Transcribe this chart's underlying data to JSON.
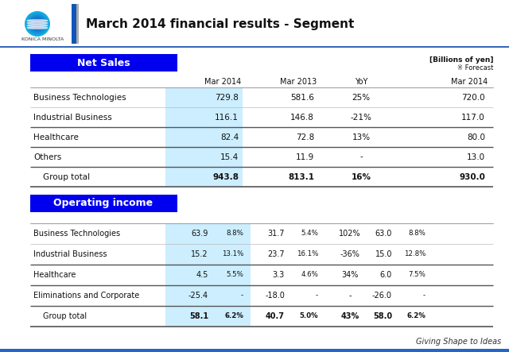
{
  "title": "March 2014 financial results - Segment",
  "bg_color": "#ffffff",
  "header_blue": "#0000EE",
  "light_blue_col": "#cceeff",
  "tagline": "Giving Shape to Ideas",
  "billions_label": "[Billions of yen]",
  "forecast_label": "※ Forecast",
  "net_sales_label": "Net Sales",
  "operating_income_label": "Operating income",
  "ns_rows": [
    {
      "label": "Business Technologies",
      "mar2014": "729.8",
      "mar2013": "581.6",
      "yoy": "25%",
      "forecast": "720.0",
      "is_total": false,
      "is_sep": false
    },
    {
      "label": "Industrial Business",
      "mar2014": "116.1",
      "mar2013": "146.8",
      "yoy": "-21%",
      "forecast": "117.0",
      "is_total": false,
      "is_sep": false
    },
    {
      "label": "Healthcare",
      "mar2014": "82.4",
      "mar2013": "72.8",
      "yoy": "13%",
      "forecast": "80.0",
      "is_total": false,
      "is_sep": true
    },
    {
      "label": "Others",
      "mar2014": "15.4",
      "mar2013": "11.9",
      "yoy": "-",
      "forecast": "13.0",
      "is_total": false,
      "is_sep": true
    },
    {
      "label": "Group total",
      "mar2014": "943.8",
      "mar2013": "813.1",
      "yoy": "16%",
      "forecast": "930.0",
      "is_total": true,
      "is_sep": true
    }
  ],
  "oi_rows": [
    {
      "label": "Business Technologies",
      "mar2014": "63.9",
      "pct2014": "8.8%",
      "mar2013": "31.7",
      "pct2013": "5.4%",
      "yoy": "102%",
      "forecast": "63.0",
      "fpct": "8.8%",
      "is_total": false,
      "is_sep": false
    },
    {
      "label": "Industrial Business",
      "mar2014": "15.2",
      "pct2014": "13.1%",
      "mar2013": "23.7",
      "pct2013": "16.1%",
      "yoy": "-36%",
      "forecast": "15.0",
      "fpct": "12.8%",
      "is_total": false,
      "is_sep": false
    },
    {
      "label": "Healthcare",
      "mar2014": "4.5",
      "pct2014": "5.5%",
      "mar2013": "3.3",
      "pct2013": "4.6%",
      "yoy": "34%",
      "forecast": "6.0",
      "fpct": "7.5%",
      "is_total": false,
      "is_sep": true
    },
    {
      "label": "Eliminations and Corporate",
      "mar2014": "-25.4",
      "pct2014": "-",
      "mar2013": "-18.0",
      "pct2013": "-",
      "yoy": "-",
      "forecast": "-26.0",
      "fpct": "-",
      "is_total": false,
      "is_sep": true
    },
    {
      "label": "Group total",
      "mar2014": "58.1",
      "pct2014": "6.2%",
      "mar2013": "40.7",
      "pct2013": "5.0%",
      "yoy": "43%",
      "forecast": "58.0",
      "fpct": "6.2%",
      "is_total": true,
      "is_sep": true
    }
  ]
}
